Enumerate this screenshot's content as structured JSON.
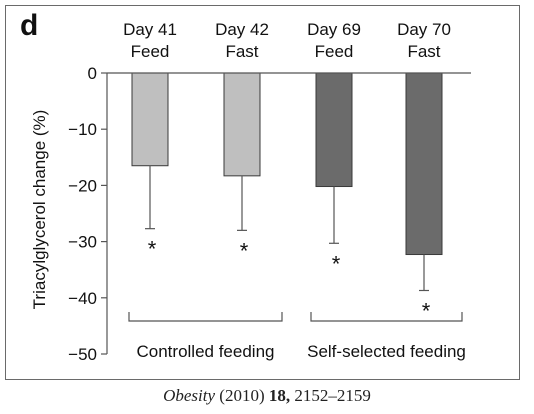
{
  "panel_letter": "d",
  "citation": {
    "journal": "Obesity",
    "year": "(2010)",
    "volume": "18,",
    "pages": "2152–2159"
  },
  "chart_data": {
    "type": "bar",
    "categories": [
      "Day 41\nFeed",
      "Day 42\nFast",
      "Day 69\nFeed",
      "Day 70\nFast"
    ],
    "values": [
      -16.5,
      -18.3,
      -20.2,
      -32.3
    ],
    "error_bars": [
      11.2,
      9.7,
      10.1,
      6.4
    ],
    "significance": [
      "*",
      "*",
      "*",
      "*"
    ],
    "bar_colors": [
      "#bfbfbf",
      "#bfbfbf",
      "#6b6b6b",
      "#6b6b6b"
    ],
    "ylabel": "Triacylglycerol change (%)",
    "ylim": [
      -50,
      0
    ],
    "yticks": [
      0,
      -10,
      -20,
      -30,
      -40,
      -50
    ],
    "x_axis_position": "top",
    "grid": false,
    "groups": [
      {
        "label": "Controlled feeding",
        "categories": [
          0,
          1
        ]
      },
      {
        "label": "Self-selected feeding",
        "categories": [
          2,
          3
        ]
      }
    ]
  }
}
